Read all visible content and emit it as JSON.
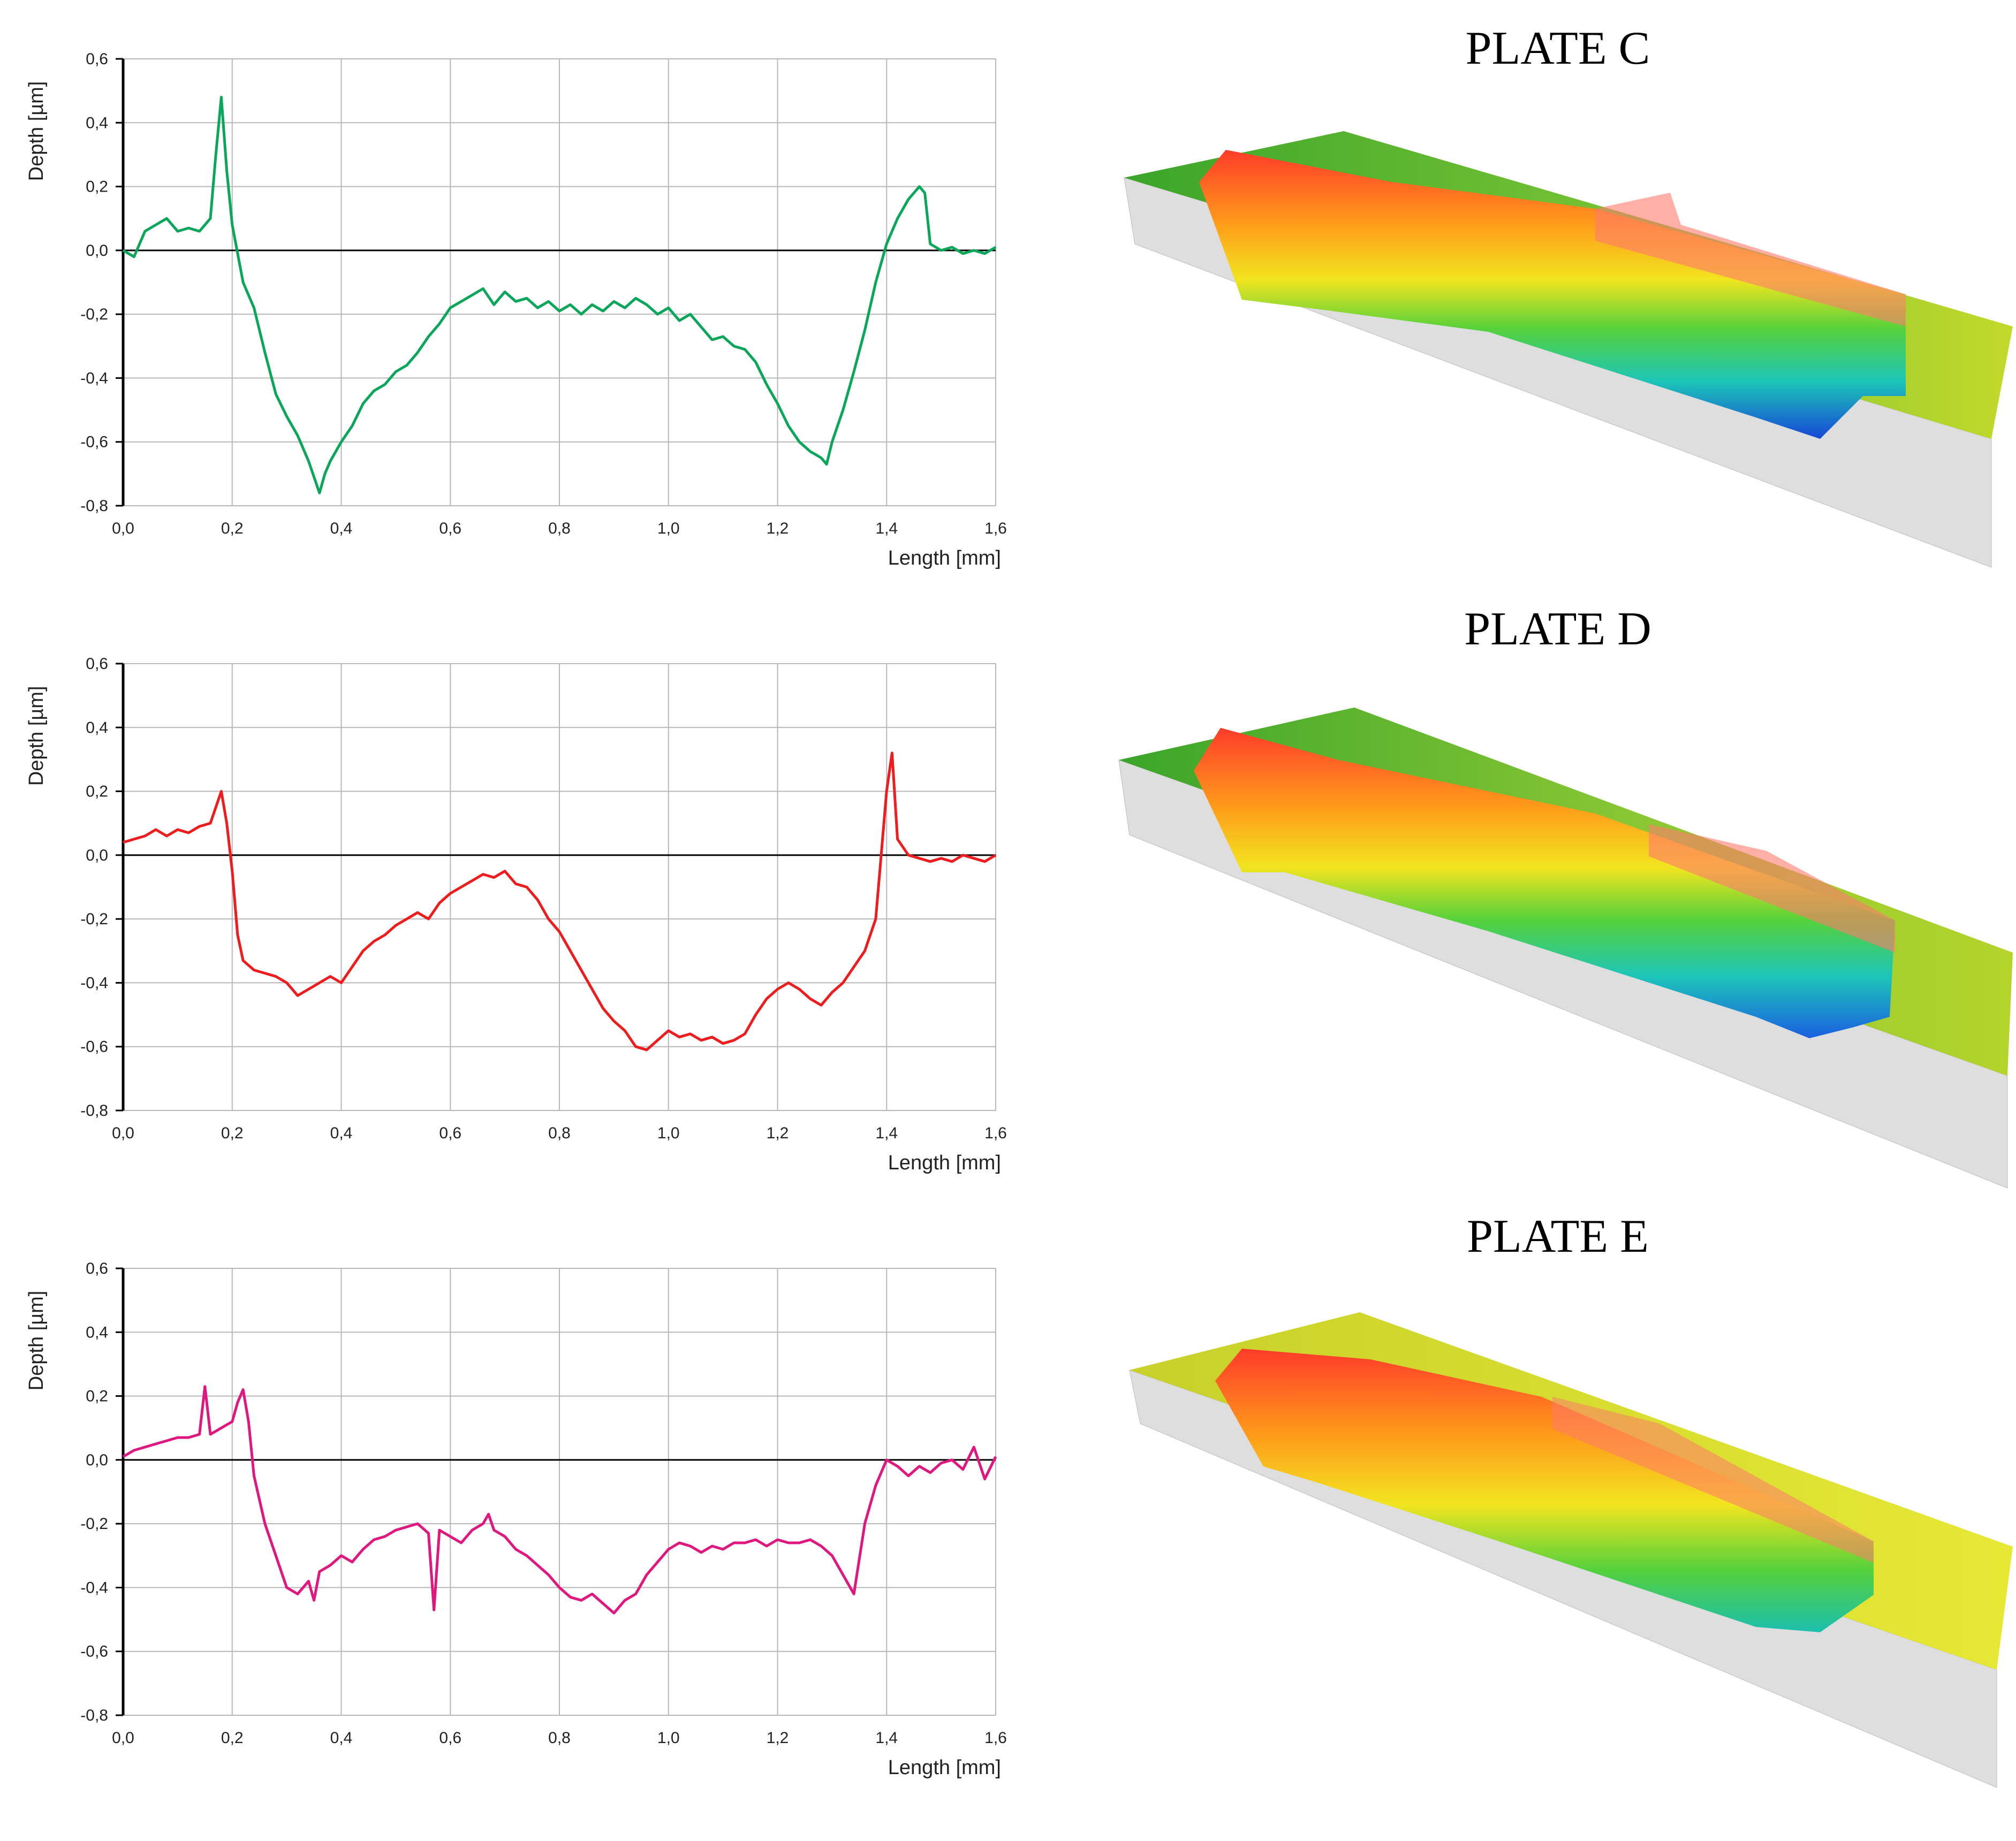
{
  "chart_data": [
    {
      "type": "line",
      "name": "plate-c-profile",
      "xlabel": "Length [mm]",
      "ylabel": "Depth [µm]",
      "xlim": [
        0,
        1.6
      ],
      "ylim": [
        -0.8,
        0.6
      ],
      "x_ticks": [
        "0,0",
        "0,2",
        "0,4",
        "0,6",
        "0,8",
        "1,0",
        "1,2",
        "1,4",
        "1,6"
      ],
      "y_ticks": [
        "0,6",
        "0,4",
        "0,2",
        "0,0",
        "-0,2",
        "-0,4",
        "-0,6",
        "-0,8"
      ],
      "grid": true,
      "series": [
        {
          "name": "Plate C",
          "color": "#0aa65a",
          "x": [
            0.0,
            0.02,
            0.04,
            0.06,
            0.08,
            0.1,
            0.12,
            0.14,
            0.16,
            0.17,
            0.18,
            0.19,
            0.2,
            0.22,
            0.24,
            0.26,
            0.28,
            0.3,
            0.32,
            0.34,
            0.36,
            0.37,
            0.38,
            0.4,
            0.42,
            0.44,
            0.46,
            0.48,
            0.5,
            0.52,
            0.54,
            0.56,
            0.58,
            0.6,
            0.62,
            0.64,
            0.66,
            0.68,
            0.7,
            0.72,
            0.74,
            0.76,
            0.78,
            0.8,
            0.82,
            0.84,
            0.86,
            0.88,
            0.9,
            0.92,
            0.94,
            0.96,
            0.98,
            1.0,
            1.02,
            1.04,
            1.06,
            1.08,
            1.1,
            1.12,
            1.14,
            1.16,
            1.18,
            1.2,
            1.22,
            1.24,
            1.26,
            1.28,
            1.29,
            1.3,
            1.32,
            1.34,
            1.36,
            1.38,
            1.4,
            1.42,
            1.44,
            1.46,
            1.47,
            1.48,
            1.5,
            1.52,
            1.54,
            1.56,
            1.58,
            1.6
          ],
          "y": [
            0.0,
            -0.02,
            0.06,
            0.08,
            0.1,
            0.06,
            0.07,
            0.06,
            0.1,
            0.3,
            0.48,
            0.25,
            0.08,
            -0.1,
            -0.18,
            -0.32,
            -0.45,
            -0.52,
            -0.58,
            -0.66,
            -0.76,
            -0.7,
            -0.66,
            -0.6,
            -0.55,
            -0.48,
            -0.44,
            -0.42,
            -0.38,
            -0.36,
            -0.32,
            -0.27,
            -0.23,
            -0.18,
            -0.16,
            -0.14,
            -0.12,
            -0.17,
            -0.13,
            -0.16,
            -0.15,
            -0.18,
            -0.16,
            -0.19,
            -0.17,
            -0.2,
            -0.17,
            -0.19,
            -0.16,
            -0.18,
            -0.15,
            -0.17,
            -0.2,
            -0.18,
            -0.22,
            -0.2,
            -0.24,
            -0.28,
            -0.27,
            -0.3,
            -0.31,
            -0.35,
            -0.42,
            -0.48,
            -0.55,
            -0.6,
            -0.63,
            -0.65,
            -0.67,
            -0.6,
            -0.5,
            -0.38,
            -0.25,
            -0.1,
            0.02,
            0.1,
            0.16,
            0.2,
            0.18,
            0.02,
            0.0,
            0.01,
            -0.01,
            0.0,
            -0.01,
            0.01
          ]
        }
      ]
    },
    {
      "type": "line",
      "name": "plate-d-profile",
      "xlabel": "Length [mm]",
      "ylabel": "Depth [µm]",
      "xlim": [
        0,
        1.6
      ],
      "ylim": [
        -0.8,
        0.6
      ],
      "x_ticks": [
        "0,0",
        "0,2",
        "0,4",
        "0,6",
        "0,8",
        "1,0",
        "1,2",
        "1,4",
        "1,6"
      ],
      "y_ticks": [
        "0,6",
        "0,4",
        "0,2",
        "0,0",
        "-0,2",
        "-0,4",
        "-0,6",
        "-0,8"
      ],
      "grid": true,
      "series": [
        {
          "name": "Plate D",
          "color": "#ee1c1c",
          "x": [
            0.0,
            0.02,
            0.04,
            0.06,
            0.08,
            0.1,
            0.12,
            0.14,
            0.16,
            0.18,
            0.19,
            0.2,
            0.21,
            0.22,
            0.24,
            0.26,
            0.28,
            0.3,
            0.32,
            0.34,
            0.36,
            0.38,
            0.4,
            0.42,
            0.44,
            0.46,
            0.48,
            0.5,
            0.52,
            0.54,
            0.56,
            0.58,
            0.6,
            0.62,
            0.64,
            0.66,
            0.68,
            0.7,
            0.72,
            0.74,
            0.76,
            0.78,
            0.8,
            0.82,
            0.84,
            0.86,
            0.88,
            0.9,
            0.92,
            0.94,
            0.96,
            0.98,
            1.0,
            1.02,
            1.04,
            1.06,
            1.08,
            1.1,
            1.12,
            1.14,
            1.16,
            1.18,
            1.2,
            1.22,
            1.24,
            1.26,
            1.28,
            1.3,
            1.32,
            1.34,
            1.36,
            1.38,
            1.39,
            1.4,
            1.41,
            1.42,
            1.44,
            1.46,
            1.48,
            1.5,
            1.52,
            1.54,
            1.56,
            1.58,
            1.6
          ],
          "y": [
            0.04,
            0.05,
            0.06,
            0.08,
            0.06,
            0.08,
            0.07,
            0.09,
            0.1,
            0.2,
            0.1,
            -0.05,
            -0.25,
            -0.33,
            -0.36,
            -0.37,
            -0.38,
            -0.4,
            -0.44,
            -0.42,
            -0.4,
            -0.38,
            -0.4,
            -0.35,
            -0.3,
            -0.27,
            -0.25,
            -0.22,
            -0.2,
            -0.18,
            -0.2,
            -0.15,
            -0.12,
            -0.1,
            -0.08,
            -0.06,
            -0.07,
            -0.05,
            -0.09,
            -0.1,
            -0.14,
            -0.2,
            -0.24,
            -0.3,
            -0.36,
            -0.42,
            -0.48,
            -0.52,
            -0.55,
            -0.6,
            -0.61,
            -0.58,
            -0.55,
            -0.57,
            -0.56,
            -0.58,
            -0.57,
            -0.59,
            -0.58,
            -0.56,
            -0.5,
            -0.45,
            -0.42,
            -0.4,
            -0.42,
            -0.45,
            -0.47,
            -0.43,
            -0.4,
            -0.35,
            -0.3,
            -0.2,
            0.0,
            0.2,
            0.32,
            0.05,
            0.0,
            -0.01,
            -0.02,
            -0.01,
            -0.02,
            0.0,
            -0.01,
            -0.02,
            0.0
          ]
        }
      ]
    },
    {
      "type": "line",
      "name": "plate-e-profile",
      "xlabel": "Length [mm]",
      "ylabel": "Depth [µm]",
      "xlim": [
        0,
        1.6
      ],
      "ylim": [
        -0.8,
        0.6
      ],
      "x_ticks": [
        "0,0",
        "0,2",
        "0,4",
        "0,6",
        "0,8",
        "1,0",
        "1,2",
        "1,4",
        "1,6"
      ],
      "y_ticks": [
        "0,6",
        "0,4",
        "0,2",
        "0,0",
        "-0,2",
        "-0,4",
        "-0,6",
        "-0,8"
      ],
      "grid": true,
      "series": [
        {
          "name": "Plate E",
          "color": "#e0177f",
          "x": [
            0.0,
            0.02,
            0.04,
            0.06,
            0.08,
            0.1,
            0.12,
            0.14,
            0.15,
            0.16,
            0.17,
            0.18,
            0.2,
            0.21,
            0.22,
            0.23,
            0.24,
            0.26,
            0.28,
            0.3,
            0.32,
            0.34,
            0.35,
            0.36,
            0.38,
            0.4,
            0.42,
            0.44,
            0.46,
            0.48,
            0.5,
            0.52,
            0.54,
            0.56,
            0.57,
            0.58,
            0.6,
            0.62,
            0.64,
            0.66,
            0.67,
            0.68,
            0.7,
            0.72,
            0.74,
            0.76,
            0.78,
            0.8,
            0.82,
            0.84,
            0.86,
            0.88,
            0.9,
            0.92,
            0.94,
            0.96,
            0.98,
            1.0,
            1.02,
            1.04,
            1.06,
            1.08,
            1.1,
            1.12,
            1.14,
            1.16,
            1.18,
            1.2,
            1.22,
            1.24,
            1.26,
            1.28,
            1.3,
            1.32,
            1.34,
            1.36,
            1.38,
            1.4,
            1.42,
            1.44,
            1.46,
            1.48,
            1.5,
            1.52,
            1.54,
            1.56,
            1.58,
            1.6
          ],
          "y": [
            0.01,
            0.03,
            0.04,
            0.05,
            0.06,
            0.07,
            0.07,
            0.08,
            0.23,
            0.08,
            0.09,
            0.1,
            0.12,
            0.18,
            0.22,
            0.12,
            -0.05,
            -0.2,
            -0.3,
            -0.4,
            -0.42,
            -0.38,
            -0.44,
            -0.35,
            -0.33,
            -0.3,
            -0.32,
            -0.28,
            -0.25,
            -0.24,
            -0.22,
            -0.21,
            -0.2,
            -0.23,
            -0.47,
            -0.22,
            -0.24,
            -0.26,
            -0.22,
            -0.2,
            -0.17,
            -0.22,
            -0.24,
            -0.28,
            -0.3,
            -0.33,
            -0.36,
            -0.4,
            -0.43,
            -0.44,
            -0.42,
            -0.45,
            -0.48,
            -0.44,
            -0.42,
            -0.36,
            -0.32,
            -0.28,
            -0.26,
            -0.27,
            -0.29,
            -0.27,
            -0.28,
            -0.26,
            -0.26,
            -0.25,
            -0.27,
            -0.25,
            -0.26,
            -0.26,
            -0.25,
            -0.27,
            -0.3,
            -0.36,
            -0.42,
            -0.2,
            -0.08,
            0.0,
            -0.02,
            -0.05,
            -0.02,
            -0.04,
            -0.01,
            0.0,
            -0.03,
            0.04,
            -0.06,
            0.01
          ]
        }
      ]
    }
  ],
  "plates": {
    "c": {
      "title": "PLATE C"
    },
    "d": {
      "title": "PLATE D"
    },
    "e": {
      "title": "PLATE E"
    }
  },
  "colors": {
    "grid": "#b7b7b7",
    "axis": "#000000",
    "surface_base": "#d9d9d9"
  }
}
